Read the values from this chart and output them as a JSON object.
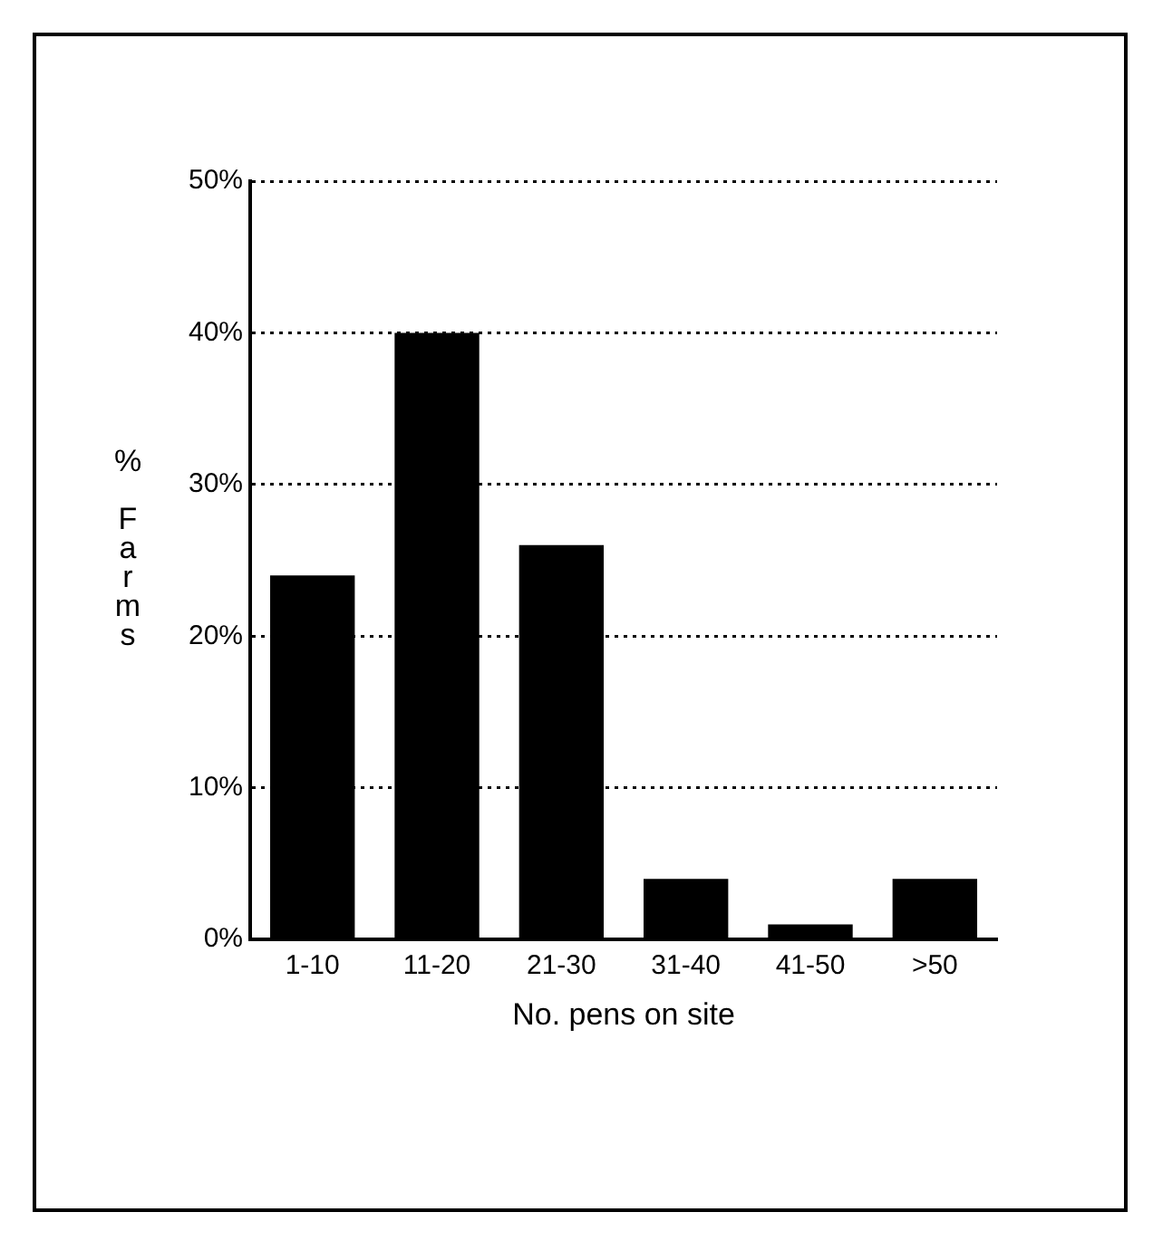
{
  "chart_data": {
    "type": "bar",
    "xlabel": "No. pens on site",
    "ylabel": "% Farms",
    "categories": [
      "1-10",
      "11-20",
      "21-30",
      "31-40",
      "41-50",
      ">50"
    ],
    "values": [
      24,
      40,
      26,
      4,
      1,
      4
    ],
    "color": "#000000",
    "ylim": [
      0,
      50
    ],
    "yticks": [
      {
        "value": 0,
        "label": "0%"
      },
      {
        "value": 10,
        "label": "10%"
      },
      {
        "value": 20,
        "label": "20%"
      },
      {
        "value": 30,
        "label": "30%"
      },
      {
        "value": 40,
        "label": "40%"
      },
      {
        "value": 50,
        "label": "50%"
      }
    ],
    "grid": "y"
  }
}
